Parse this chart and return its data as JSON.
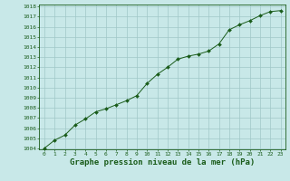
{
  "x": [
    0,
    1,
    2,
    3,
    4,
    5,
    6,
    7,
    8,
    9,
    10,
    11,
    12,
    13,
    14,
    15,
    16,
    17,
    18,
    19,
    20,
    21,
    22,
    23
  ],
  "y": [
    1004.0,
    1004.8,
    1005.3,
    1006.3,
    1006.9,
    1007.6,
    1007.9,
    1008.3,
    1008.7,
    1009.2,
    1010.4,
    1011.3,
    1012.0,
    1012.8,
    1013.1,
    1013.3,
    1013.6,
    1014.3,
    1015.7,
    1016.2,
    1016.6,
    1017.1,
    1017.5,
    1017.6
  ],
  "ylim": [
    1004,
    1018
  ],
  "xlim": [
    -0.5,
    23.5
  ],
  "yticks": [
    1004,
    1005,
    1006,
    1007,
    1008,
    1009,
    1010,
    1011,
    1012,
    1013,
    1014,
    1015,
    1016,
    1017,
    1018
  ],
  "xticks": [
    0,
    1,
    2,
    3,
    4,
    5,
    6,
    7,
    8,
    9,
    10,
    11,
    12,
    13,
    14,
    15,
    16,
    17,
    18,
    19,
    20,
    21,
    22,
    23
  ],
  "xlabel": "Graphe pression niveau de la mer (hPa)",
  "line_color": "#1a5c1a",
  "marker": "D",
  "marker_size": 2.0,
  "bg_color": "#c8e8e8",
  "grid_color": "#a0c8c8",
  "tick_fontsize": 4.5,
  "xlabel_fontsize": 6.5
}
